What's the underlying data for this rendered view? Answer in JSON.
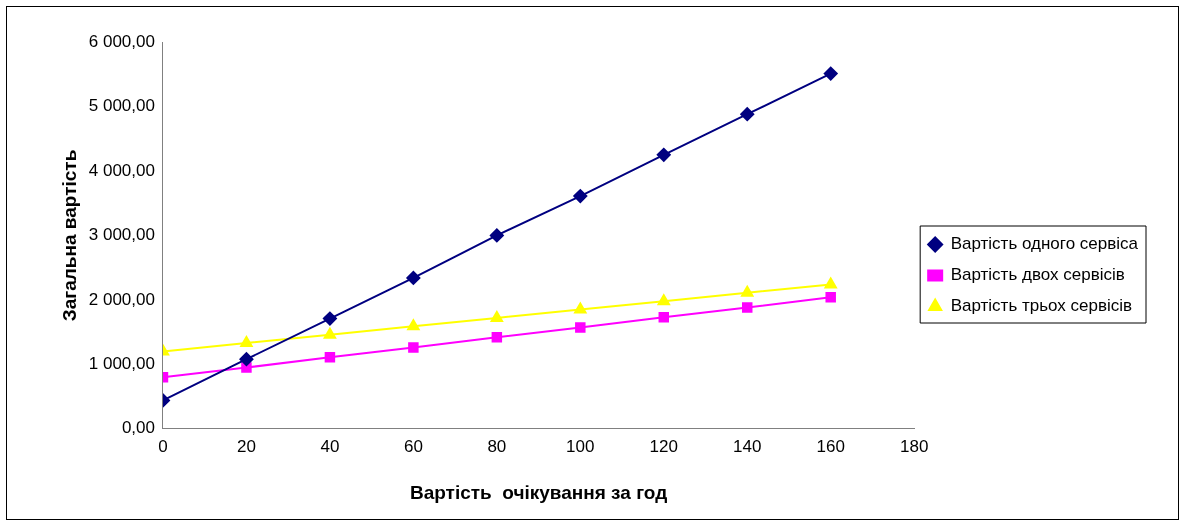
{
  "chart_data": {
    "type": "line",
    "xlabel": "Вартість  очікування за год",
    "ylabel": "Загальна вартість",
    "x": [
      0,
      20,
      40,
      60,
      80,
      100,
      120,
      140,
      160
    ],
    "series": [
      {
        "name": "Вартість одного сервіса",
        "color": "#000080",
        "marker": "diamond",
        "values": [
          440,
          1080,
          1710,
          2340,
          3000,
          3610,
          4250,
          4880,
          5510
        ]
      },
      {
        "name": "Вартість двох сервісів",
        "color": "#ff00ff",
        "marker": "square",
        "values": [
          800,
          950,
          1110,
          1260,
          1420,
          1570,
          1730,
          1880,
          2040
        ]
      },
      {
        "name": "Вартість трьох сервісів",
        "color": "#ffff00",
        "marker": "triangle",
        "values": [
          1200,
          1330,
          1460,
          1590,
          1720,
          1850,
          1980,
          2110,
          2240
        ]
      }
    ],
    "xlim": [
      0,
      180
    ],
    "xticks": [
      0,
      20,
      40,
      60,
      80,
      100,
      120,
      140,
      160,
      180
    ],
    "ylim": [
      0,
      6000
    ],
    "yticks": [
      {
        "value": 0,
        "label": "0,00"
      },
      {
        "value": 1000,
        "label": "1 000,00"
      },
      {
        "value": 2000,
        "label": "2 000,00"
      },
      {
        "value": 3000,
        "label": "3 000,00"
      },
      {
        "value": 4000,
        "label": "4 000,00"
      },
      {
        "value": 5000,
        "label": "5 000,00"
      },
      {
        "value": 6000,
        "label": "6 000,00"
      }
    ],
    "grid": false,
    "legend": "right",
    "line_style": "solid"
  }
}
